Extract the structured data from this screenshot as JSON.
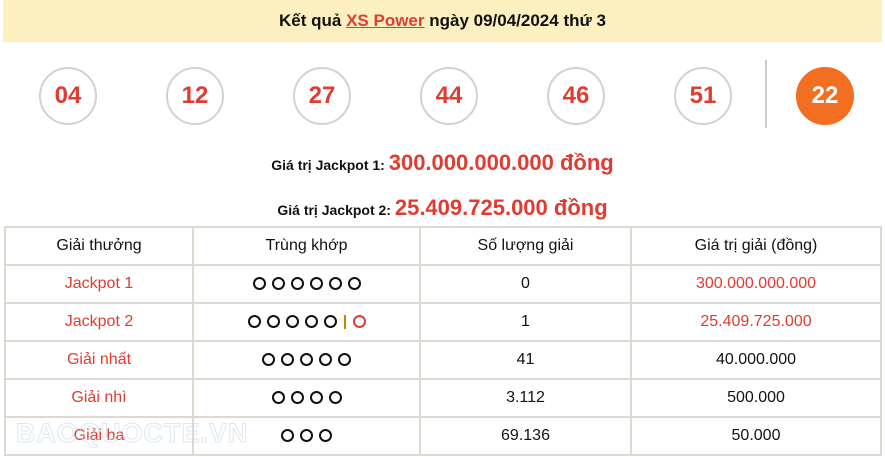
{
  "header": {
    "prefix": "Kết quả",
    "link": "XS Power",
    "suffix": "ngày 09/04/2024 thứ 3"
  },
  "balls": [
    "04",
    "12",
    "27",
    "44",
    "46",
    "51"
  ],
  "power_ball": "22",
  "colors": {
    "accent": "#e03c31",
    "power": "#f26f21",
    "header_bg": "#fdf0c0"
  },
  "jackpot1": {
    "label": "Giá trị Jackpot 1:",
    "value": "300.000.000.000 đồng"
  },
  "jackpot2": {
    "label": "Giá trị Jackpot 2:",
    "value": "25.409.725.000 đồng"
  },
  "table": {
    "headers": [
      "Giải thưởng",
      "Trùng khớp",
      "Số lượng giải",
      "Giá trị giải (đồng)"
    ],
    "rows": [
      {
        "prize": "Jackpot 1",
        "match": 6,
        "extra": false,
        "count": "0",
        "value": "300.000.000.000",
        "value_red": true
      },
      {
        "prize": "Jackpot 2",
        "match": 5,
        "extra": true,
        "count": "1",
        "value": "25.409.725.000",
        "value_red": true
      },
      {
        "prize": "Giải nhất",
        "match": 5,
        "extra": false,
        "count": "41",
        "value": "40.000.000",
        "value_red": false
      },
      {
        "prize": "Giải nhì",
        "match": 4,
        "extra": false,
        "count": "3.112",
        "value": "500.000",
        "value_red": false
      },
      {
        "prize": "Giải ba",
        "match": 3,
        "extra": false,
        "count": "69.136",
        "value": "50.000",
        "value_red": false
      }
    ]
  },
  "watermark": "BAOQUOCTE.VN"
}
